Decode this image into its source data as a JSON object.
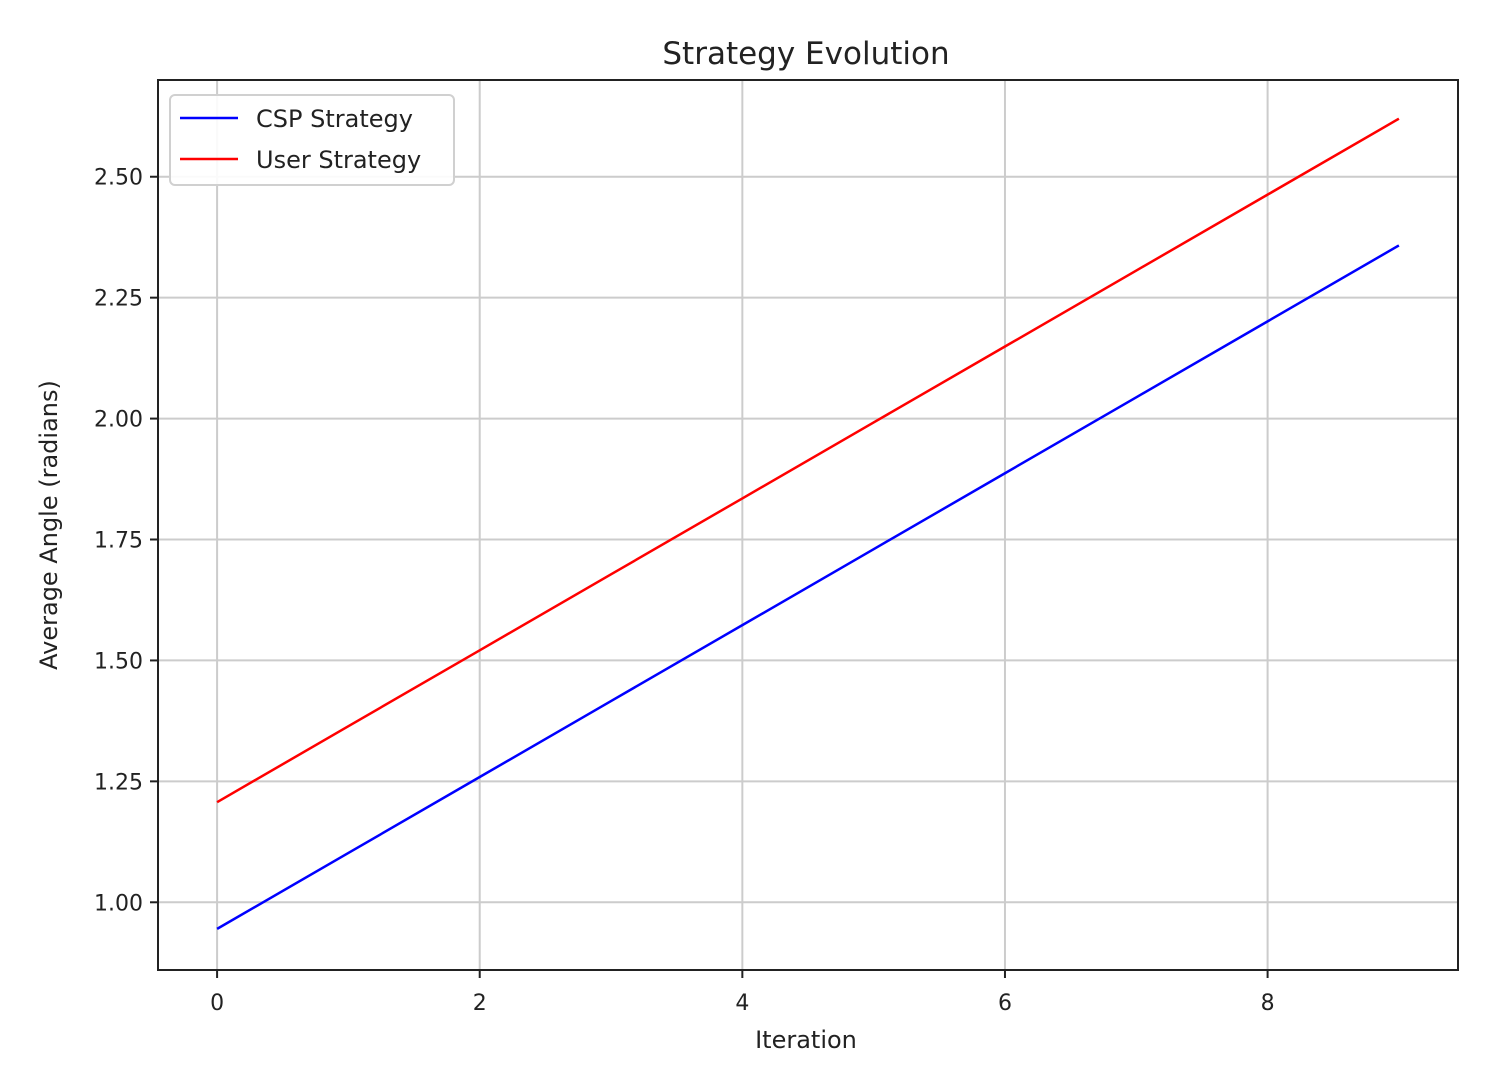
{
  "chart_data": {
    "type": "line",
    "title": "Strategy Evolution",
    "xlabel": "Iteration",
    "ylabel": "Average Angle (radians)",
    "x": [
      0,
      1,
      2,
      3,
      4,
      5,
      6,
      7,
      8,
      9
    ],
    "series": [
      {
        "name": "CSP Strategy",
        "color": "#0000ff",
        "values": [
          0.945,
          1.102,
          1.259,
          1.416,
          1.573,
          1.73,
          1.887,
          2.044,
          2.201,
          2.358
        ]
      },
      {
        "name": "User Strategy",
        "color": "#ff0000",
        "values": [
          1.207,
          1.364,
          1.521,
          1.678,
          1.835,
          1.992,
          2.149,
          2.306,
          2.463,
          2.62
        ]
      }
    ],
    "xlim": [
      -0.45,
      9.45
    ],
    "ylim": [
      0.86,
      2.7
    ],
    "xticks": [
      0,
      2,
      4,
      6,
      8
    ],
    "xtick_labels": [
      "0",
      "2",
      "4",
      "6",
      "8"
    ],
    "yticks": [
      1.0,
      1.25,
      1.5,
      1.75,
      2.0,
      2.25,
      2.5
    ],
    "ytick_labels": [
      "1.00",
      "1.25",
      "1.50",
      "1.75",
      "2.00",
      "2.25",
      "2.50"
    ],
    "grid": true,
    "legend_position": "upper-left"
  }
}
